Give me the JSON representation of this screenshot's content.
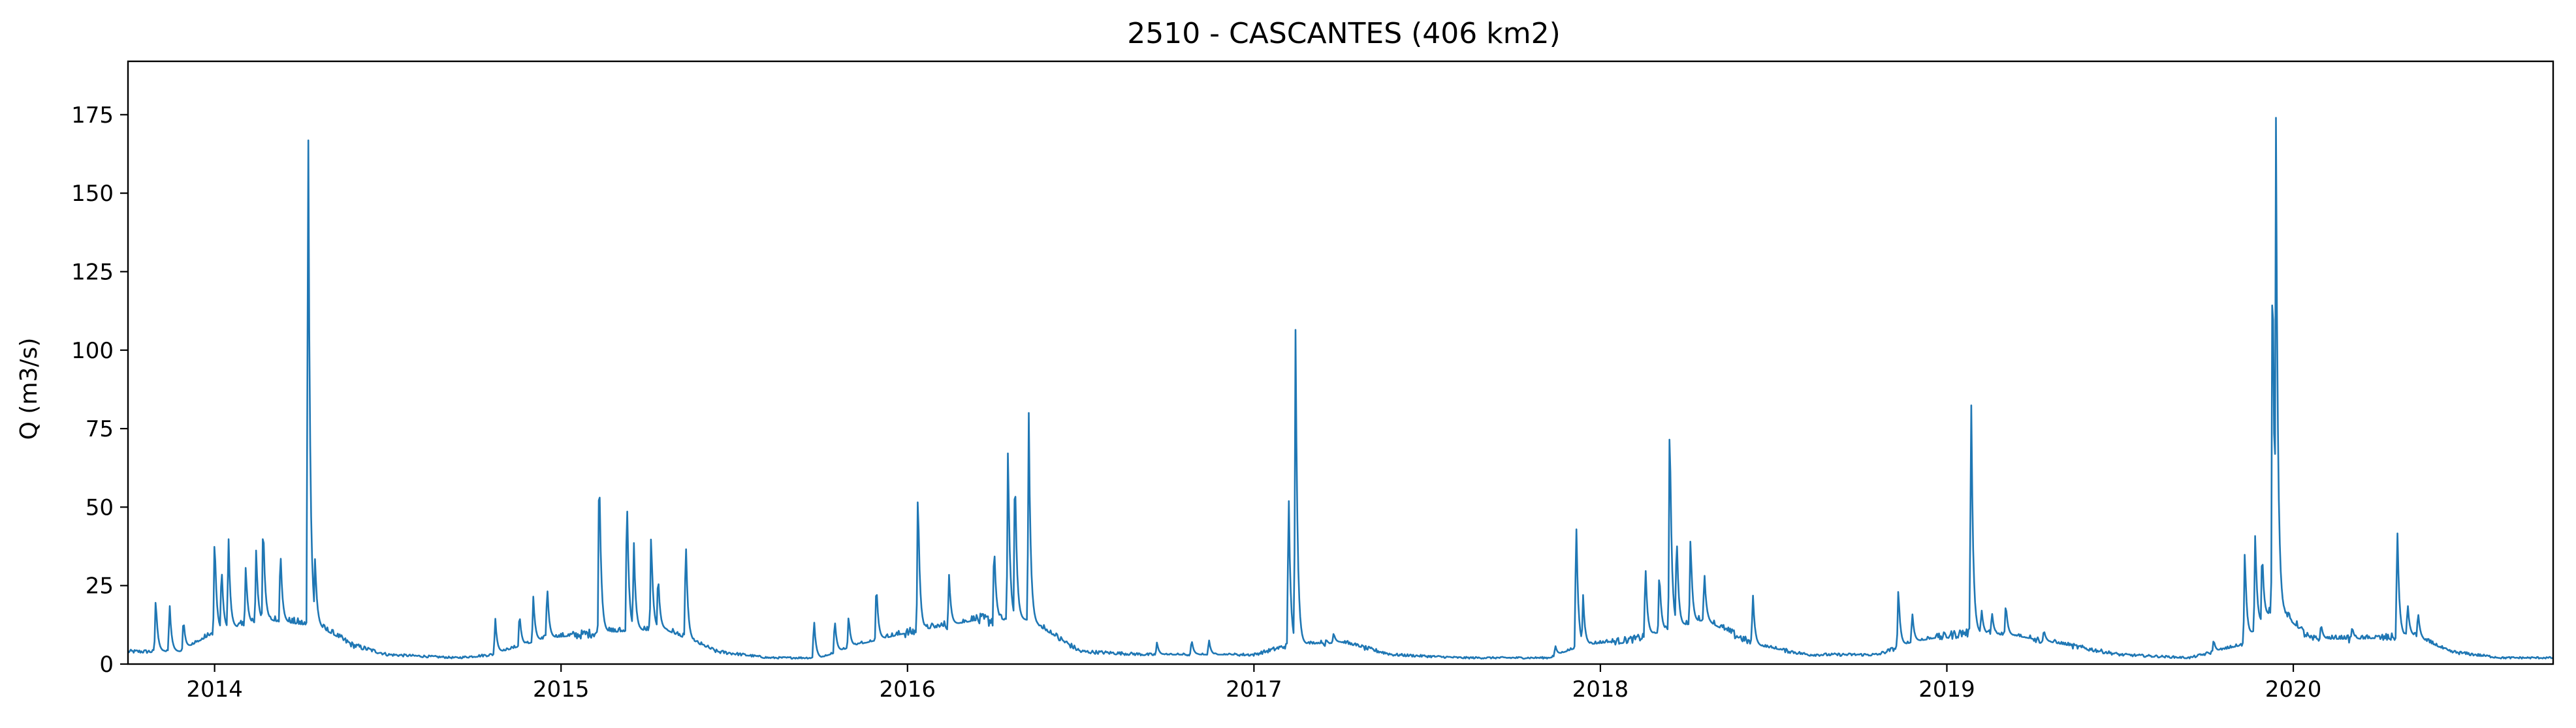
{
  "chart_data": {
    "type": "line",
    "title": "2510 - CASCANTES (406 km2)",
    "xlabel": "",
    "ylabel": "Q (m3/s)",
    "xlim": [
      2013.75,
      2020.75
    ],
    "ylim": [
      0,
      192
    ],
    "grid": false,
    "legend": "none",
    "x_ticks": [
      2014,
      2015,
      2016,
      2017,
      2018,
      2019,
      2020
    ],
    "x_tick_labels": [
      "2014",
      "2015",
      "2016",
      "2017",
      "2018",
      "2019",
      "2020"
    ],
    "y_ticks": [
      0,
      25,
      50,
      75,
      100,
      125,
      150,
      175
    ],
    "y_tick_labels": [
      "0",
      "25",
      "50",
      "75",
      "100",
      "125",
      "150",
      "175"
    ],
    "series": [
      {
        "color": "#1f77b4",
        "baseflow": [
          [
            2013.75,
            4
          ],
          [
            2013.9,
            4
          ],
          [
            2014.0,
            10
          ],
          [
            2014.15,
            14
          ],
          [
            2014.3,
            12
          ],
          [
            2014.4,
            6
          ],
          [
            2014.5,
            3
          ],
          [
            2014.7,
            2
          ],
          [
            2014.8,
            3
          ],
          [
            2014.95,
            8
          ],
          [
            2015.1,
            10
          ],
          [
            2015.3,
            11
          ],
          [
            2015.45,
            4
          ],
          [
            2015.6,
            2
          ],
          [
            2015.75,
            2
          ],
          [
            2015.85,
            6
          ],
          [
            2016.0,
            10
          ],
          [
            2016.2,
            14
          ],
          [
            2016.35,
            14
          ],
          [
            2016.5,
            4
          ],
          [
            2016.7,
            3
          ],
          [
            2016.85,
            3
          ],
          [
            2017.0,
            3
          ],
          [
            2017.1,
            6
          ],
          [
            2017.25,
            7
          ],
          [
            2017.4,
            3
          ],
          [
            2017.6,
            2
          ],
          [
            2017.85,
            2
          ],
          [
            2017.95,
            6
          ],
          [
            2018.1,
            8
          ],
          [
            2018.3,
            14
          ],
          [
            2018.45,
            6
          ],
          [
            2018.6,
            3
          ],
          [
            2018.8,
            3
          ],
          [
            2018.9,
            7
          ],
          [
            2019.05,
            10
          ],
          [
            2019.2,
            9
          ],
          [
            2019.35,
            6
          ],
          [
            2019.5,
            3
          ],
          [
            2019.7,
            2
          ],
          [
            2019.85,
            6
          ],
          [
            2019.95,
            18
          ],
          [
            2020.05,
            8
          ],
          [
            2020.2,
            8
          ],
          [
            2020.35,
            9
          ],
          [
            2020.45,
            4
          ],
          [
            2020.6,
            2
          ],
          [
            2020.75,
            2
          ]
        ],
        "peaks": [
          [
            2013.83,
            22
          ],
          [
            2013.87,
            20
          ],
          [
            2013.91,
            15
          ],
          [
            2014.0,
            43
          ],
          [
            2014.02,
            33
          ],
          [
            2014.04,
            42
          ],
          [
            2014.09,
            32
          ],
          [
            2014.12,
            37
          ],
          [
            2014.14,
            48
          ],
          [
            2014.19,
            38
          ],
          [
            2014.27,
            183
          ],
          [
            2014.29,
            35
          ],
          [
            2014.81,
            15
          ],
          [
            2014.88,
            17
          ],
          [
            2014.92,
            22
          ],
          [
            2014.96,
            26
          ],
          [
            2015.11,
            68
          ],
          [
            2015.19,
            57
          ],
          [
            2015.21,
            40
          ],
          [
            2015.26,
            43
          ],
          [
            2015.28,
            30
          ],
          [
            2015.36,
            42
          ],
          [
            2015.73,
            15
          ],
          [
            2015.79,
            15
          ],
          [
            2015.83,
            16
          ],
          [
            2015.91,
            27
          ],
          [
            2016.03,
            58
          ],
          [
            2016.12,
            29
          ],
          [
            2016.25,
            40
          ],
          [
            2016.29,
            71
          ],
          [
            2016.31,
            67
          ],
          [
            2016.35,
            80
          ],
          [
            2016.72,
            7
          ],
          [
            2016.82,
            8
          ],
          [
            2016.87,
            8
          ],
          [
            2017.1,
            58
          ],
          [
            2017.12,
            110
          ],
          [
            2017.23,
            10
          ],
          [
            2017.87,
            6
          ],
          [
            2017.93,
            49
          ],
          [
            2017.95,
            22
          ],
          [
            2018.13,
            33
          ],
          [
            2018.17,
            31
          ],
          [
            2018.2,
            84
          ],
          [
            2018.22,
            44
          ],
          [
            2018.26,
            42
          ],
          [
            2018.3,
            30
          ],
          [
            2018.44,
            23
          ],
          [
            2018.86,
            25
          ],
          [
            2018.9,
            17
          ],
          [
            2019.07,
            90
          ],
          [
            2019.1,
            18
          ],
          [
            2019.13,
            17
          ],
          [
            2019.17,
            20
          ],
          [
            2019.28,
            11
          ],
          [
            2019.77,
            8
          ],
          [
            2019.86,
            38
          ],
          [
            2019.89,
            43
          ],
          [
            2019.91,
            38
          ],
          [
            2019.94,
            145
          ],
          [
            2019.95,
            174
          ],
          [
            2020.08,
            13
          ],
          [
            2020.17,
            12
          ],
          [
            2020.3,
            46
          ],
          [
            2020.33,
            20
          ],
          [
            2020.36,
            17
          ]
        ]
      }
    ]
  }
}
